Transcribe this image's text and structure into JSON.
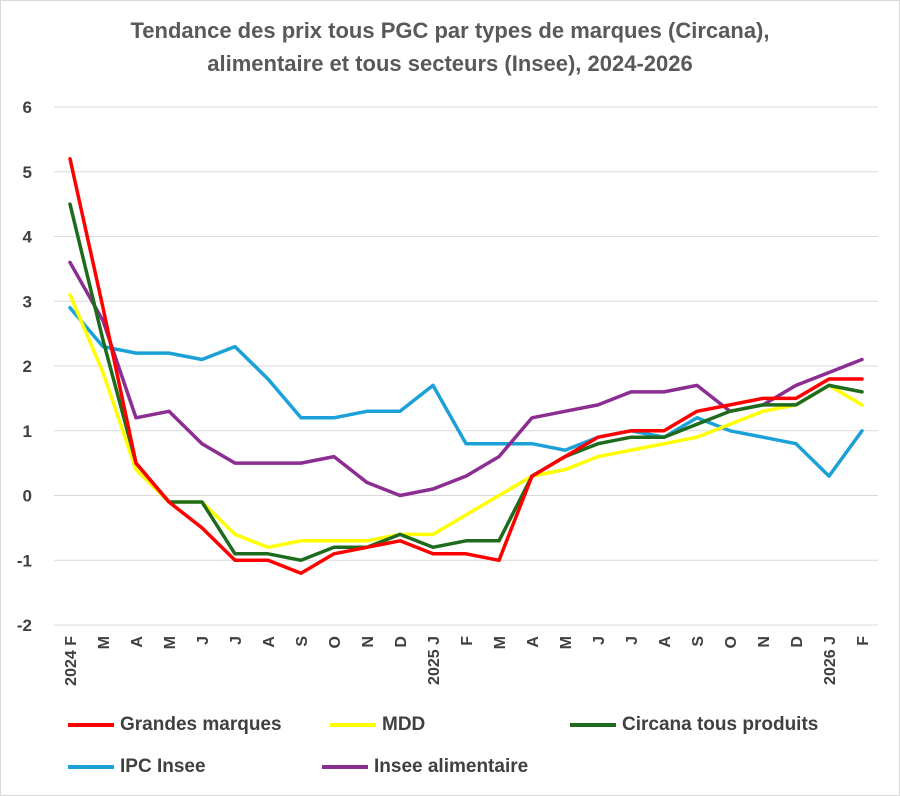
{
  "chart_data": {
    "type": "line",
    "title_lines": [
      "Tendance des prix tous PGC par types de marques (Circana),",
      "alimentaire et tous secteurs (Insee), 2024-2026"
    ],
    "categories": [
      "2024 F",
      "M",
      "A",
      "M",
      "J",
      "J",
      "A",
      "S",
      "O",
      "N",
      "D",
      "2025 J",
      "F",
      "M",
      "A",
      "M",
      "J",
      "J",
      "A",
      "S",
      "O",
      "N",
      "D",
      "2026 J",
      "F"
    ],
    "ylim": [
      -2,
      6
    ],
    "yticks": [
      "6",
      "5",
      "4",
      "3",
      "2",
      "1",
      "0",
      "-1",
      "-2"
    ],
    "ytick_values": [
      6,
      5,
      4,
      3,
      2,
      1,
      0,
      -1,
      -2
    ],
    "grid": true,
    "legend_position": "bottom",
    "series": [
      {
        "name": "Grandes marques",
        "color": "#ff0000",
        "values": [
          5.2,
          2.9,
          0.5,
          -0.1,
          -0.5,
          -1.0,
          -1.0,
          -1.2,
          -0.9,
          -0.8,
          -0.7,
          -0.9,
          -0.9,
          -1.0,
          0.3,
          0.6,
          0.9,
          1.0,
          1.0,
          1.3,
          1.4,
          1.5,
          1.5,
          1.8,
          1.8
        ]
      },
      {
        "name": "MDD",
        "color": "#ffff00",
        "values": [
          3.1,
          1.9,
          0.4,
          -0.1,
          -0.1,
          -0.6,
          -0.8,
          -0.7,
          -0.7,
          -0.7,
          -0.6,
          -0.6,
          -0.3,
          0.0,
          0.3,
          0.4,
          0.6,
          0.7,
          0.8,
          0.9,
          1.1,
          1.3,
          1.4,
          1.7,
          1.4
        ]
      },
      {
        "name": "Circana tous produits",
        "color": "#1e6b1e",
        "values": [
          4.5,
          2.4,
          0.5,
          -0.1,
          -0.1,
          -0.9,
          -0.9,
          -1.0,
          -0.8,
          -0.8,
          -0.6,
          -0.8,
          -0.7,
          -0.7,
          0.3,
          0.6,
          0.8,
          0.9,
          0.9,
          1.1,
          1.3,
          1.4,
          1.4,
          1.7,
          1.6
        ]
      },
      {
        "name": "IPC Insee",
        "color": "#1ba1d8",
        "values": [
          2.9,
          2.3,
          2.2,
          2.2,
          2.1,
          2.3,
          1.8,
          1.2,
          1.2,
          1.3,
          1.3,
          1.7,
          0.8,
          0.8,
          0.8,
          0.7,
          0.9,
          1.0,
          0.9,
          1.2,
          1.0,
          0.9,
          0.8,
          0.3,
          1.0
        ]
      },
      {
        "name": "Insee alimentaire",
        "color": "#8c2d91",
        "values": [
          3.6,
          2.7,
          1.2,
          1.3,
          0.8,
          0.5,
          0.5,
          0.5,
          0.6,
          0.2,
          0.0,
          0.1,
          0.3,
          0.6,
          1.2,
          1.3,
          1.4,
          1.6,
          1.6,
          1.7,
          1.3,
          1.4,
          1.7,
          1.9,
          2.1
        ]
      }
    ]
  }
}
